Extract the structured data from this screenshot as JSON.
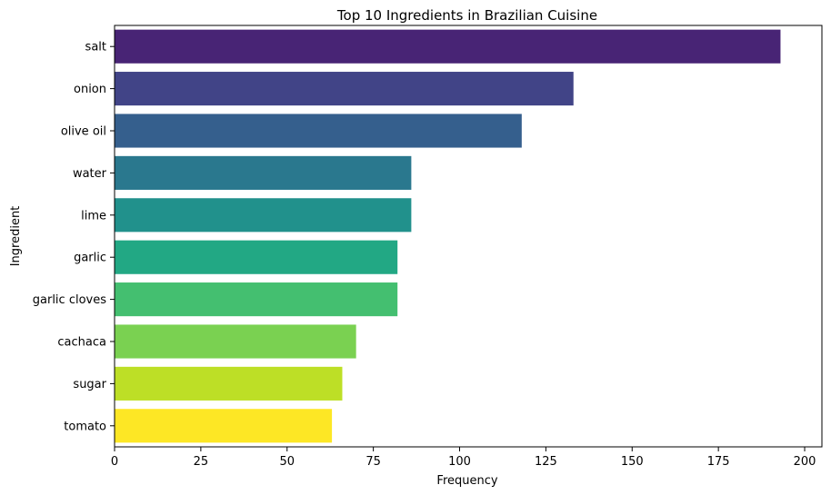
{
  "chart_data": {
    "type": "bar",
    "orientation": "horizontal",
    "title": "Top 10 Ingredients in Brazilian Cuisine",
    "xlabel": "Frequency",
    "ylabel": "Ingredient",
    "categories": [
      "salt",
      "onion",
      "olive oil",
      "water",
      "lime",
      "garlic",
      "garlic cloves",
      "cachaca",
      "sugar",
      "tomato"
    ],
    "values": [
      193,
      133,
      118,
      86,
      86,
      82,
      82,
      70,
      66,
      63
    ],
    "colors": [
      "#482475",
      "#414487",
      "#355f8d",
      "#2a788e",
      "#21918c",
      "#22a884",
      "#44bf70",
      "#7ad151",
      "#bddf26",
      "#fde725"
    ],
    "xlim": [
      0,
      205
    ],
    "xticks": [
      0,
      25,
      50,
      75,
      100,
      125,
      150,
      175,
      200
    ],
    "grid": false,
    "legend": "none"
  }
}
